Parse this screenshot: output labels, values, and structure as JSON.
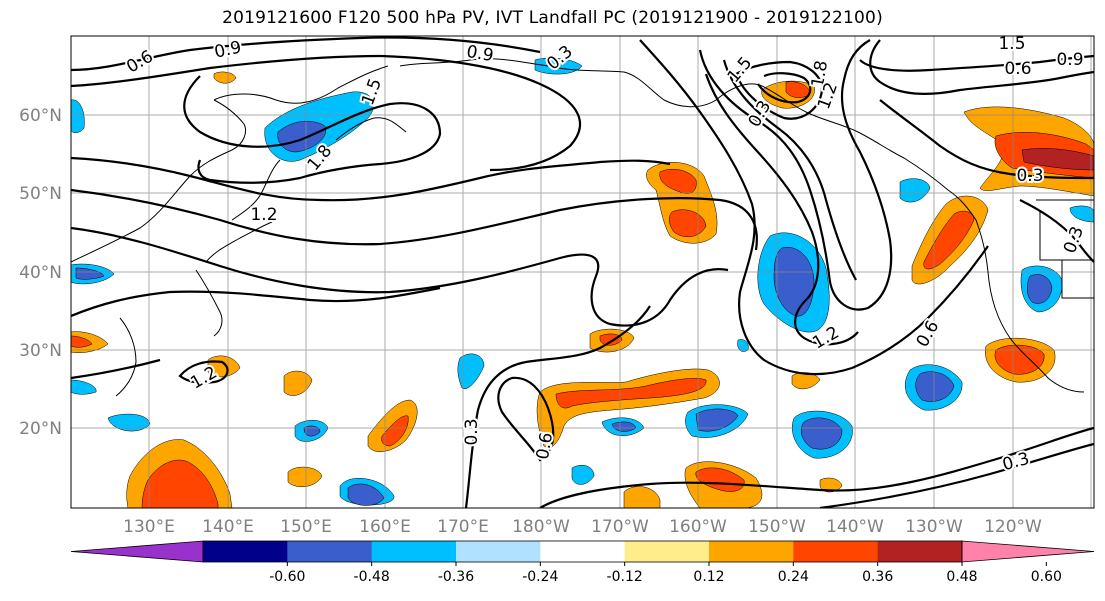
{
  "title": "2019121600 F120 500 hPa PV, IVT Landfall PC (2019121900 - 2019122100)",
  "lat_labels": [
    "60°N",
    "50°N",
    "40°N",
    "30°N",
    "20°N"
  ],
  "lon_labels": [
    "130°E",
    "140°E",
    "150°E",
    "160°E",
    "170°E",
    "180°W",
    "170°W",
    "160°W",
    "150°W",
    "140°W",
    "130°W",
    "120°W"
  ],
  "contour_labels": [
    "0.6",
    "0.9",
    "0.9",
    "0.3",
    "1.5",
    "1.8",
    "1.2",
    "1.5",
    "0.6",
    "0.9",
    "1.5",
    "1.8",
    "1.2",
    "1.2",
    "0.6",
    "0.3",
    "0.3",
    "0.3",
    "0.6",
    "0.3",
    "1.2",
    "0.3"
  ],
  "colorbar": {
    "tick_labels": [
      "-0.60",
      "-0.48",
      "-0.36",
      "-0.24",
      "-0.12",
      "0.12",
      "0.24",
      "0.36",
      "0.48",
      "0.60"
    ],
    "colors": [
      "#9932cc",
      "#00008b",
      "#3a5fcd",
      "#00bfff",
      "#b0e2ff",
      "#ffffff",
      "#ffec8b",
      "#ffa500",
      "#ff4500",
      "#b22222",
      "#ff82ab"
    ]
  },
  "shading_colors": {
    "neg_strong": "#3a5fcd",
    "neg": "#00bfff",
    "neg_weak": "#b0e2ff",
    "pos_weak": "#ffec8b",
    "pos": "#ffa500",
    "pos_strong": "#ff4500",
    "pos_max": "#b22222"
  }
}
